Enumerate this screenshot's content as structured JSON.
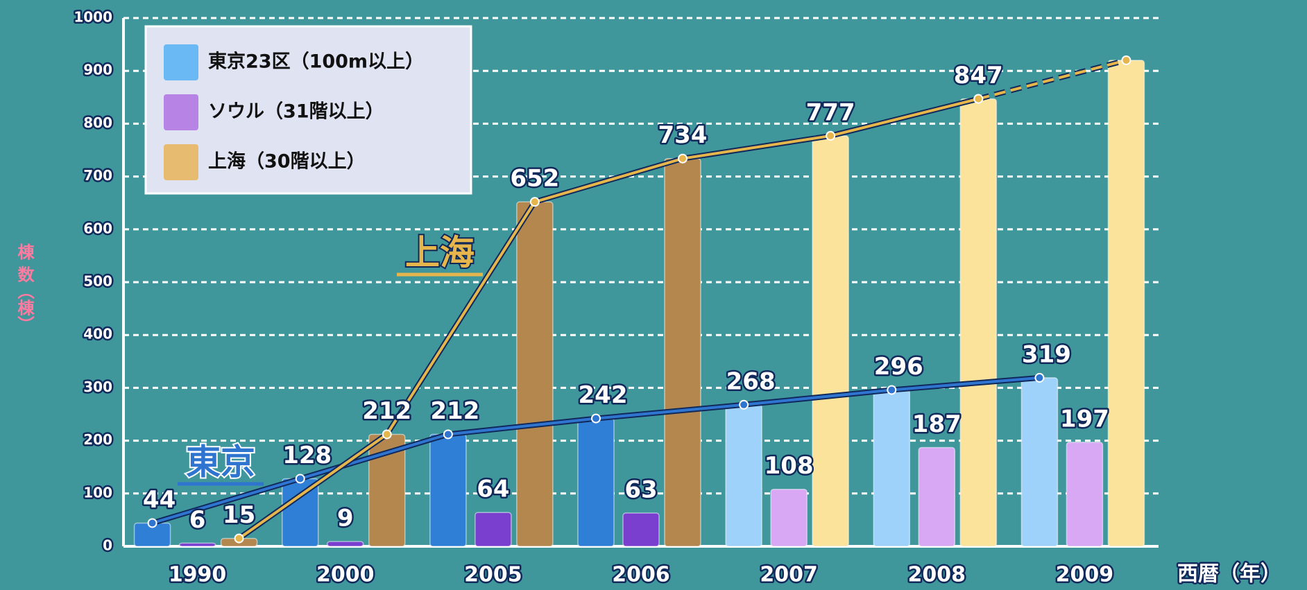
{
  "chart_data": {
    "type": "bar",
    "y_label": "棟 数（棟）",
    "x_label": "西暦（年）",
    "categories": [
      "1990",
      "2000",
      "2005",
      "2006",
      "2007",
      "2008",
      "2009"
    ],
    "series": [
      {
        "name": "東京23区（100m以上）",
        "color": "#6ab8f4",
        "bar_colors": [
          "#2f7fd6",
          "#2f7fd6",
          "#2f7fd6",
          "#2f7fd6",
          "#9ed2fb",
          "#9ed2fb",
          "#9ed2fb"
        ],
        "values": [
          44,
          128,
          212,
          242,
          268,
          296,
          319
        ]
      },
      {
        "name": "ソウル（31階以上）",
        "color": "#b784e6",
        "bar_colors": [
          "#7b3fcf",
          "#7b3fcf",
          "#7b3fcf",
          "#7b3fcf",
          "#d9a8f4",
          "#d9a8f4",
          "#d9a8f4"
        ],
        "values": [
          6,
          9,
          64,
          63,
          108,
          187,
          197
        ]
      },
      {
        "name": "上海（30階以上）",
        "color": "#e8bc70",
        "bar_colors": [
          "#b4874e",
          "#b4874e",
          "#b4874e",
          "#b4874e",
          "#fbe39c",
          "#fbe39c",
          "#fbe39c"
        ],
        "values": [
          15,
          212,
          652,
          734,
          777,
          847,
          920
        ],
        "value_labels": [
          "15",
          "212",
          "652",
          "734",
          "777",
          "847",
          null
        ]
      }
    ],
    "lines": [
      {
        "name": "東京",
        "color": "#2f75cf"
      },
      {
        "name": "上海",
        "color": "#e6b64c"
      }
    ],
    "ylim": [
      0,
      1000
    ],
    "yticks": [
      0,
      100,
      200,
      300,
      400,
      500,
      600,
      700,
      800,
      900,
      1000
    ],
    "grid": true
  }
}
